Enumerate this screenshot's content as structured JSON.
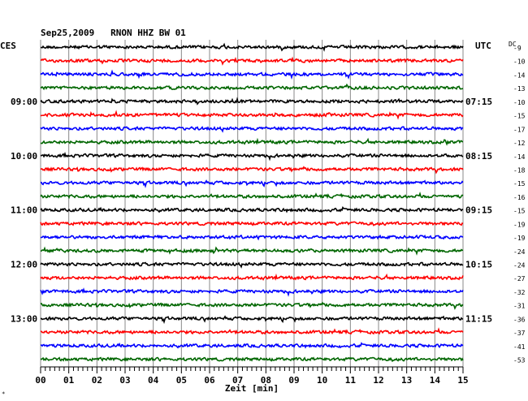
{
  "chart_data": {
    "type": "line",
    "title": "Sep25,2009   RNON HHZ BW 01",
    "header_left": "CES",
    "header_right": "UTC",
    "dc_header": "DC",
    "xlabel": "Zeit [min]",
    "x_ticks": [
      "00",
      "01",
      "02",
      "03",
      "04",
      "05",
      "06",
      "07",
      "08",
      "09",
      "10",
      "11",
      "12",
      "13",
      "14",
      "15"
    ],
    "xlim": [
      0,
      15
    ],
    "grid": true,
    "trace_colors": [
      "#000000",
      "#ff0000",
      "#0000ff",
      "#006600"
    ],
    "hour_labels_left": [
      {
        "row": 4,
        "label": "09:00"
      },
      {
        "row": 8,
        "label": "10:00"
      },
      {
        "row": 12,
        "label": "11:00"
      },
      {
        "row": 16,
        "label": "12:00"
      },
      {
        "row": 20,
        "label": "13:00"
      }
    ],
    "hour_labels_right": [
      {
        "row": 4,
        "label": "07:15"
      },
      {
        "row": 8,
        "label": "08:15"
      },
      {
        "row": 12,
        "label": "09:15"
      },
      {
        "row": 16,
        "label": "10:15"
      },
      {
        "row": 20,
        "label": "11:15"
      }
    ],
    "dc_offsets": [
      -9,
      -10,
      -14,
      -13,
      -10,
      -15,
      -17,
      -12,
      -14,
      -18,
      -15,
      -16,
      -15,
      -19,
      -19,
      -24,
      -24,
      -27,
      -32,
      -31,
      -36,
      -37,
      -41,
      -53
    ]
  },
  "corner_mark": "∗"
}
